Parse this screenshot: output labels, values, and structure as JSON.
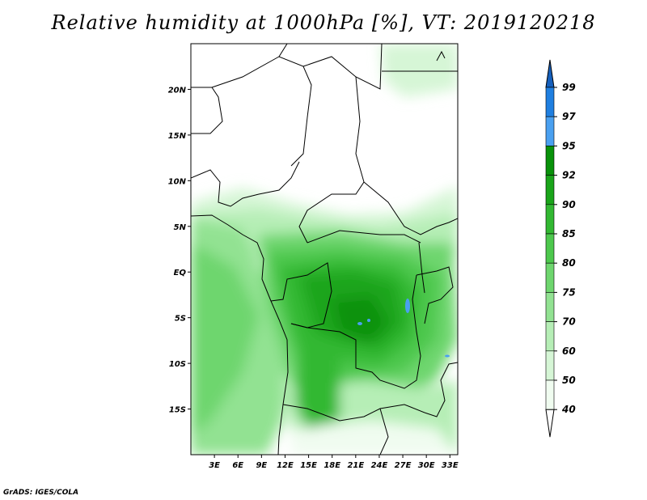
{
  "title": "Relative humidity at 1000hPa [%], VT: 2019120218",
  "footer": "GrADS: IGES/COLA",
  "map": {
    "lon_range": [
      0,
      34
    ],
    "lat_range": [
      -20,
      25
    ],
    "lon_ticks": [
      "3E",
      "6E",
      "9E",
      "12E",
      "15E",
      "18E",
      "21E",
      "24E",
      "27E",
      "30E",
      "33E"
    ],
    "lat_ticks": [
      "20N",
      "15N",
      "10N",
      "5N",
      "EQ",
      "5S",
      "10S",
      "15S"
    ]
  },
  "colorbar": {
    "levels": [
      "99",
      "97",
      "95",
      "92",
      "90",
      "85",
      "80",
      "75",
      "70",
      "60",
      "50",
      "40"
    ],
    "colors": [
      "#1560bd",
      "#1f7fe0",
      "#4aa0f0",
      "#08920a",
      "#1aa51a",
      "#32b832",
      "#4dc84d",
      "#6ed66e",
      "#92e292",
      "#b6eeb6",
      "#d6f6d6",
      "#f0fcf0"
    ]
  }
}
